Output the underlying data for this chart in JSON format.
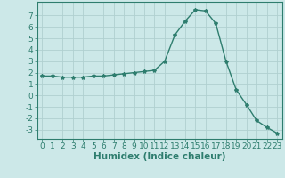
{
  "x": [
    0,
    1,
    2,
    3,
    4,
    5,
    6,
    7,
    8,
    9,
    10,
    11,
    12,
    13,
    14,
    15,
    16,
    17,
    18,
    19,
    20,
    21,
    22,
    23
  ],
  "y": [
    1.7,
    1.7,
    1.6,
    1.6,
    1.6,
    1.7,
    1.7,
    1.8,
    1.9,
    2.0,
    2.1,
    2.2,
    3.0,
    5.3,
    6.5,
    7.5,
    7.4,
    6.3,
    3.0,
    0.5,
    -0.8,
    -2.2,
    -2.8,
    -3.3
  ],
  "line_color": "#2e7d6e",
  "marker": "*",
  "marker_size": 3.0,
  "bg_color": "#cce8e8",
  "grid_color": "#b0d0d0",
  "xlabel": "Humidex (Indice chaleur)",
  "xlim": [
    -0.5,
    23.5
  ],
  "ylim": [
    -3.8,
    8.2
  ],
  "yticks": [
    -3,
    -2,
    -1,
    0,
    1,
    2,
    3,
    4,
    5,
    6,
    7
  ],
  "xticks": [
    0,
    1,
    2,
    3,
    4,
    5,
    6,
    7,
    8,
    9,
    10,
    11,
    12,
    13,
    14,
    15,
    16,
    17,
    18,
    19,
    20,
    21,
    22,
    23
  ],
  "tick_color": "#2e7d6e",
  "label_color": "#2e7d6e",
  "font_size": 6.5,
  "xlabel_fontsize": 7.5,
  "linewidth": 1.0
}
